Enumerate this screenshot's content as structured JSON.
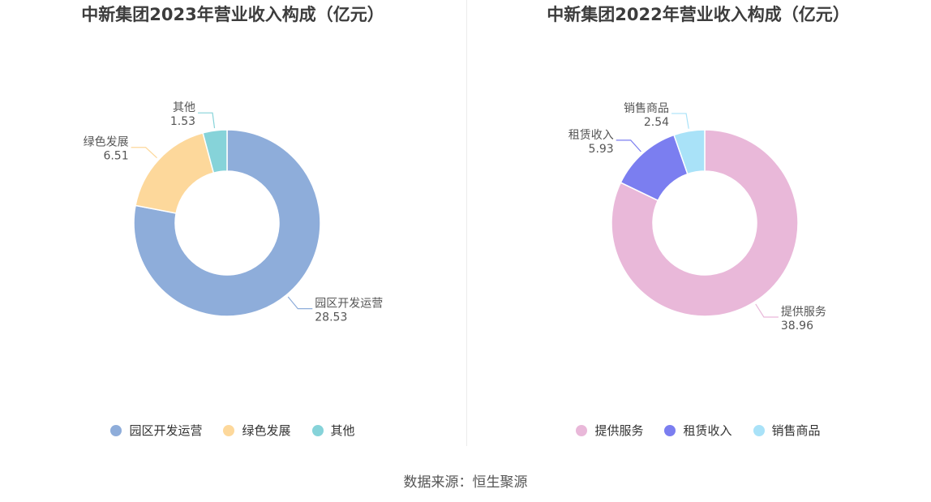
{
  "chart_data": [
    {
      "type": "pie",
      "title": "中新集团2023年营业收入构成（亿元）",
      "categories": [
        "园区开发运营",
        "绿色发展",
        "其他"
      ],
      "values": [
        28.53,
        6.51,
        1.53
      ],
      "colors": [
        "#8eadda",
        "#fdd89b",
        "#86d3d9"
      ],
      "legend": "bottom"
    },
    {
      "type": "pie",
      "title": "中新集团2022年营业收入构成（亿元）",
      "categories": [
        "提供服务",
        "租赁收入",
        "销售商品"
      ],
      "values": [
        38.96,
        5.93,
        2.54
      ],
      "colors": [
        "#e9b8d9",
        "#7b7ef0",
        "#a9e2f8"
      ],
      "legend": "bottom"
    }
  ],
  "footer": {
    "source": "数据来源：恒生聚源"
  }
}
